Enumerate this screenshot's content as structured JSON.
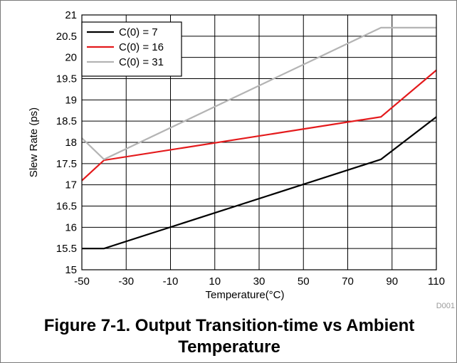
{
  "caption": "Figure 7-1. Output Transition-time vs Ambient Temperature",
  "figure_code": "D001",
  "chart_data": {
    "type": "line",
    "title": "",
    "xlabel": "Temperature(°C)",
    "ylabel": "Slew Rate (ps)",
    "xlim": [
      -50,
      110
    ],
    "ylim": [
      15,
      21
    ],
    "x_ticks": [
      -50,
      -30,
      -10,
      10,
      30,
      50,
      70,
      90,
      110
    ],
    "y_ticks": [
      15,
      15.5,
      16,
      16.5,
      17,
      17.5,
      18,
      18.5,
      19,
      19.5,
      20,
      20.5,
      21
    ],
    "grid": true,
    "legend_position": "top-left",
    "series": [
      {
        "name": "C(0) = 7",
        "color": "#000000",
        "points": [
          [
            -50,
            15.5
          ],
          [
            -40,
            15.5
          ],
          [
            85,
            17.6
          ],
          [
            110,
            18.6
          ]
        ]
      },
      {
        "name": "C(0) = 16",
        "color": "#e41a1c",
        "points": [
          [
            -50,
            17.1
          ],
          [
            -40,
            17.58
          ],
          [
            85,
            18.6
          ],
          [
            110,
            19.7
          ]
        ]
      },
      {
        "name": "C(0) = 31",
        "color": "#b4b4b4",
        "points": [
          [
            -50,
            18.1
          ],
          [
            -40,
            17.6
          ],
          [
            85,
            20.7
          ],
          [
            110,
            20.7
          ]
        ]
      }
    ]
  }
}
